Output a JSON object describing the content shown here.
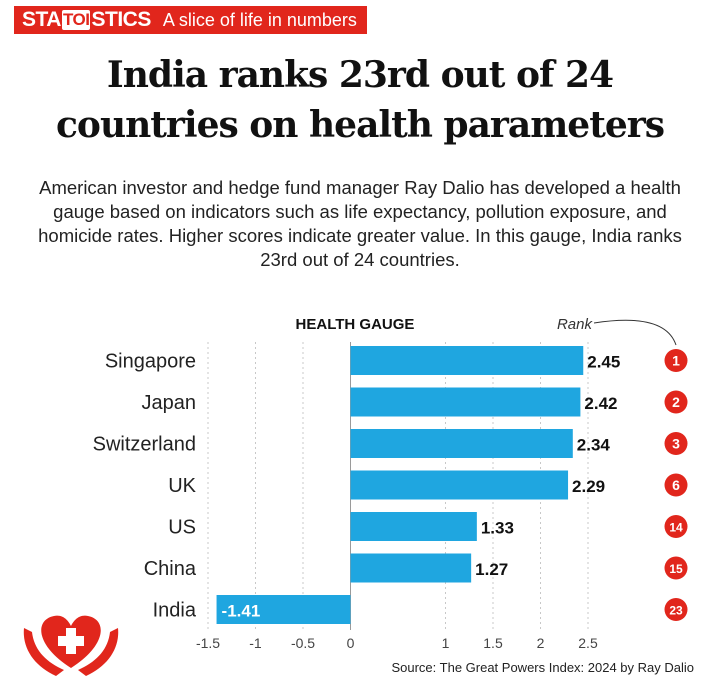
{
  "brand": {
    "logo_pre": "STA",
    "logo_mid": "TOI",
    "logo_post": "STICS",
    "tagline": "A slice of life in numbers"
  },
  "headline_line1": "India ranks 23rd out of 24",
  "headline_line2": "countries on health parameters",
  "intro": "American investor and hedge fund manager Ray Dalio has developed a health gauge based on indicators such as life expectancy, pollution exposure, and homicide rates. Higher scores indicate greater value. In this gauge, India ranks 23rd out of 24 countries.",
  "source": "Source: The Great Powers Index: 2024 by Ray Dalio",
  "colors": {
    "accent": "#e1261c",
    "bar": "#1fa6e0"
  },
  "chart_data": {
    "type": "bar",
    "orientation": "horizontal",
    "title": "HEALTH GAUGE",
    "rank_label": "Rank",
    "categories": [
      "Singapore",
      "Japan",
      "Switzerland",
      "UK",
      "US",
      "China",
      "India"
    ],
    "values": [
      2.45,
      2.42,
      2.34,
      2.29,
      1.33,
      1.27,
      -1.41
    ],
    "value_labels": [
      "2.45",
      "2.42",
      "2.34",
      "2.29",
      "1.33",
      "1.27",
      "-1.41"
    ],
    "ranks": [
      "1",
      "2",
      "3",
      "6",
      "14",
      "15",
      "23"
    ],
    "xlim": [
      -1.5,
      2.5
    ],
    "xticks": [
      -1.5,
      -1,
      -0.5,
      0,
      1,
      1.5,
      2,
      2.5
    ],
    "xtick_labels": [
      "-1.5",
      "-1",
      "-0.5",
      "0",
      "1",
      "1.5",
      "2",
      "2.5"
    ],
    "grid": true
  }
}
